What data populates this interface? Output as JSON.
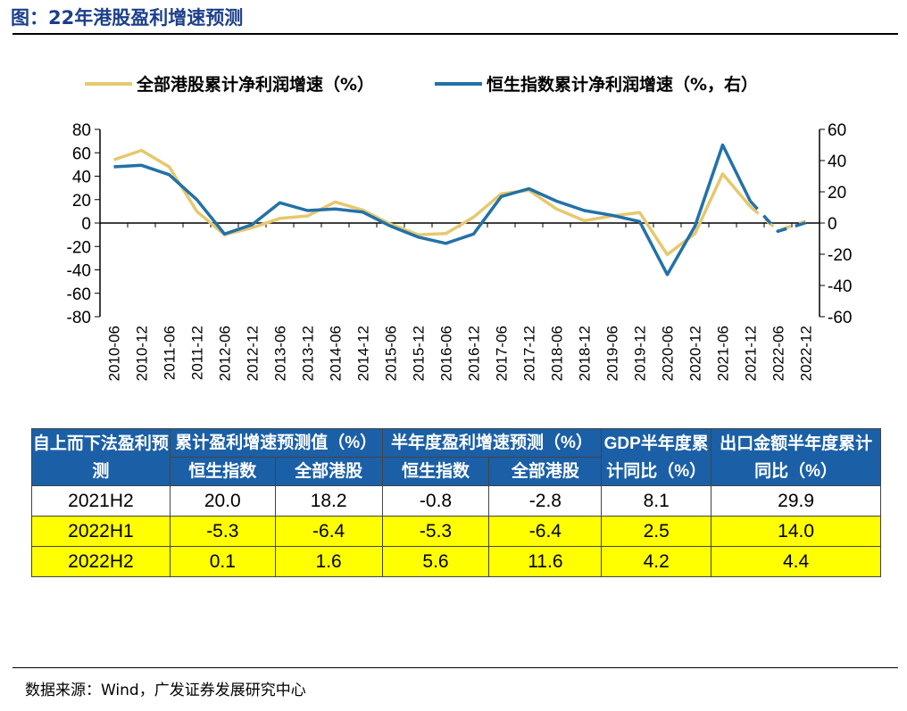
{
  "title": "图：22年港股盈利增速预测",
  "source": "数据来源：Wind，广发证券发展研究中心",
  "colors": {
    "series1": "#e6c86e",
    "series2": "#2371a8",
    "header_bg": "#1b5fa6",
    "highlight": "#ffff00"
  },
  "chart_data": {
    "type": "line",
    "x": [
      "2010-06",
      "2010-12",
      "2011-06",
      "2011-12",
      "2012-06",
      "2012-12",
      "2013-06",
      "2013-12",
      "2014-06",
      "2014-12",
      "2015-06",
      "2015-12",
      "2016-06",
      "2016-12",
      "2017-06",
      "2017-12",
      "2018-06",
      "2018-12",
      "2019-06",
      "2019-12",
      "2020-06",
      "2020-12",
      "2021-06",
      "2021-12",
      "2022-06",
      "2022-12"
    ],
    "series": [
      {
        "name": "全部港股累计净利润增速（%）",
        "axis": "left",
        "values": [
          54,
          62,
          48,
          10,
          -10,
          -4,
          4,
          6,
          18,
          11,
          -1,
          -10,
          -9,
          5,
          25,
          28,
          12,
          2,
          6,
          9,
          -27,
          -9,
          42,
          14,
          null,
          null
        ],
        "forecast": [
          14,
          -6.4,
          1.6
        ]
      },
      {
        "name": "恒生指数累计净利润增速（%，右）",
        "axis": "right",
        "values": [
          36,
          37,
          31,
          15,
          -7,
          -1,
          13,
          8,
          9,
          7,
          -2,
          -9,
          -13,
          -7,
          17,
          22,
          14,
          8,
          5,
          1,
          -33,
          -2,
          50,
          14,
          null,
          null
        ],
        "forecast": [
          14,
          -5.3,
          0.1
        ]
      }
    ],
    "left_axis": {
      "ylim": [
        -80,
        80
      ],
      "ticks": [
        -80,
        -60,
        -40,
        -20,
        0,
        20,
        40,
        60,
        80
      ]
    },
    "right_axis": {
      "ylim": [
        -60,
        60
      ],
      "ticks": [
        -60,
        -40,
        -20,
        0,
        20,
        40,
        60
      ]
    },
    "legend_position": "top",
    "forecast_style": "dashed"
  },
  "table": {
    "header": {
      "col0": "自上而下法盈利预测",
      "g1": "累计盈利增速预测值（%）",
      "g2": "半年度盈利增速预测（%）",
      "gdp": "GDP半年度累计同比（%）",
      "export": "出口金额半年度累计同比（%）",
      "hs": "恒生指数",
      "all": "全部港股"
    },
    "rows": [
      {
        "period": "2021H2",
        "cum_hs": "20.0",
        "cum_all": "18.2",
        "half_hs": "-0.8",
        "half_all": "-2.8",
        "gdp": "8.1",
        "export": "29.9"
      },
      {
        "period": "2022H1",
        "cum_hs": "-5.3",
        "cum_all": "-6.4",
        "half_hs": "-5.3",
        "half_all": "-6.4",
        "gdp": "2.5",
        "export": "14.0"
      },
      {
        "period": "2022H2",
        "cum_hs": "0.1",
        "cum_all": "1.6",
        "half_hs": "5.6",
        "half_all": "11.6",
        "gdp": "4.2",
        "export": "4.4"
      }
    ]
  }
}
